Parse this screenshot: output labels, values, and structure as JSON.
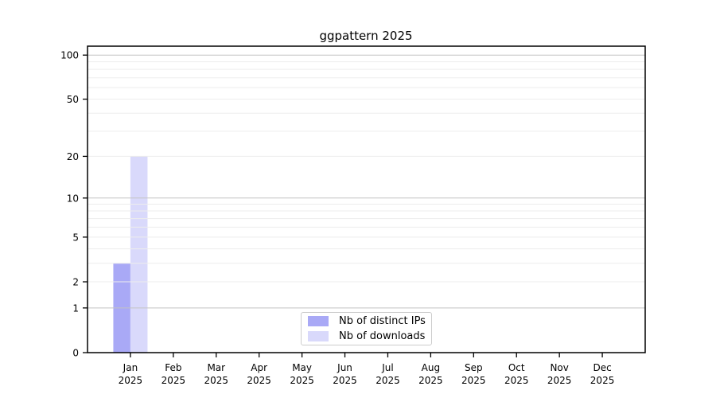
{
  "chart_data": {
    "type": "bar",
    "title": "ggpattern 2025",
    "categories": [
      "Jan",
      "Feb",
      "Mar",
      "Apr",
      "May",
      "Jun",
      "Jul",
      "Aug",
      "Sep",
      "Oct",
      "Nov",
      "Dec"
    ],
    "category_year": "2025",
    "series": [
      {
        "name": "Nb of distinct IPs",
        "color": "#a9a9f6",
        "values": [
          3,
          0,
          0,
          0,
          0,
          0,
          0,
          0,
          0,
          0,
          0,
          0
        ]
      },
      {
        "name": "Nb of downloads",
        "color": "#d9d9fb",
        "values": [
          20,
          0,
          0,
          0,
          0,
          0,
          0,
          0,
          0,
          0,
          0,
          0
        ]
      }
    ],
    "xlabel": "",
    "ylabel": "",
    "yscale": "log1p",
    "ylim": [
      0,
      115
    ],
    "y_ticks": [
      0,
      1,
      2,
      5,
      10,
      20,
      50,
      100
    ],
    "grid": {
      "on": true,
      "major_lines": [
        1,
        10,
        100
      ],
      "minor_lines": [
        2,
        3,
        4,
        5,
        6,
        7,
        8,
        9,
        20,
        30,
        40,
        50,
        60,
        70,
        80,
        90
      ],
      "major_color": "#c3c3c3",
      "minor_color": "#ededed"
    },
    "axis_color": "#000000",
    "legend": {
      "position": "bottom-center-inside"
    }
  }
}
